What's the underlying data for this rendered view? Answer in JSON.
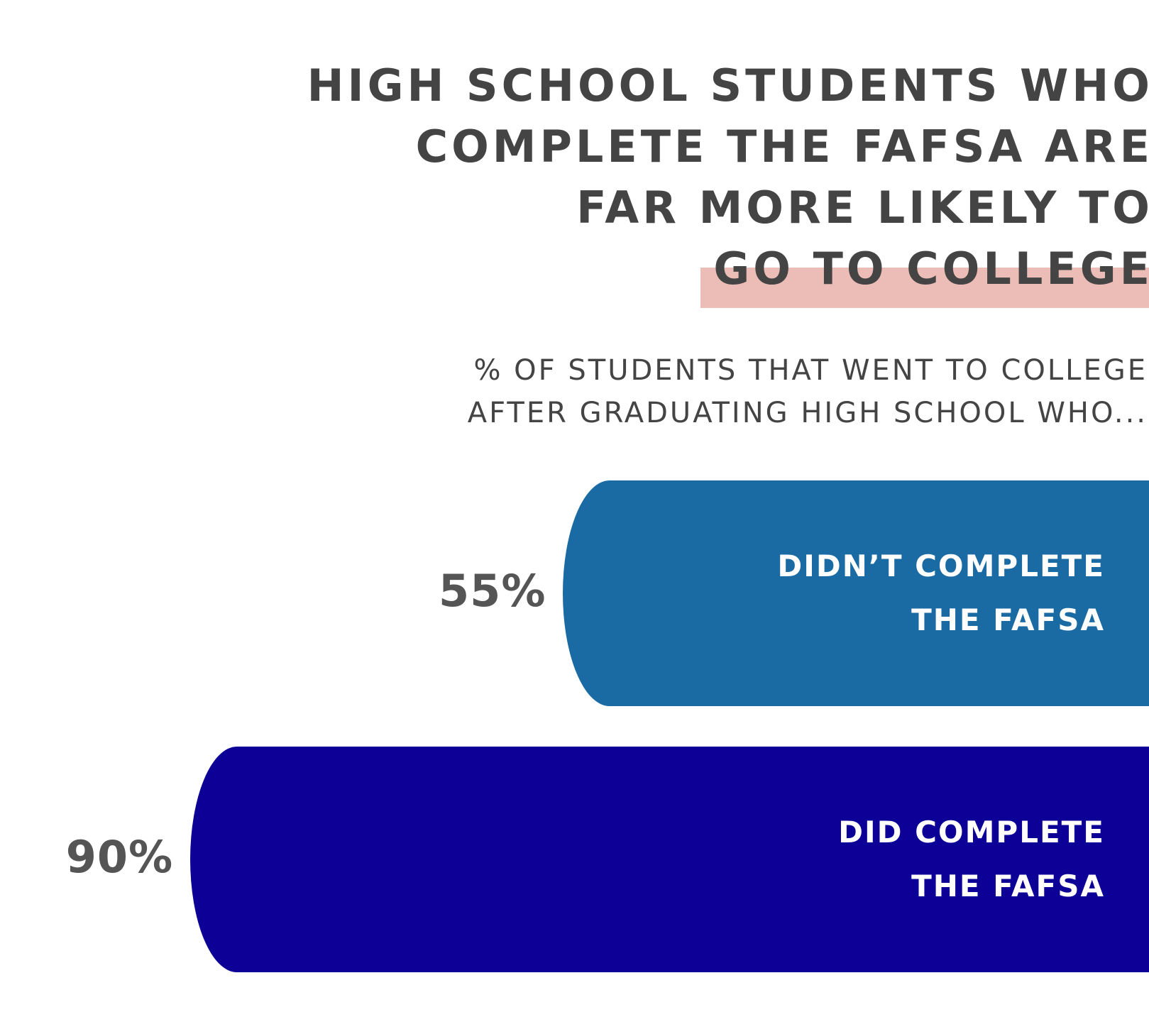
{
  "chart_data": {
    "type": "bar",
    "title": "HIGH SCHOOL STUDENTS WHO\nCOMPLETE THE FAFSA ARE\nFAR MORE LIKELY TO\nGO TO COLLEGE",
    "subtitle": "% OF STUDENTS THAT WENT TO COLLEGE\nAFTER GRADUATING HIGH SCHOOL WHO...",
    "categories": [
      "DIDN’T COMPLETE\nTHE FAFSA",
      "DID COMPLETE\nTHE FAFSA"
    ],
    "values": [
      55,
      90
    ],
    "value_labels": [
      "55%",
      "90%"
    ],
    "colors": [
      "#1a6aa4",
      "#0d0096"
    ],
    "xlim": [
      0,
      100
    ]
  }
}
